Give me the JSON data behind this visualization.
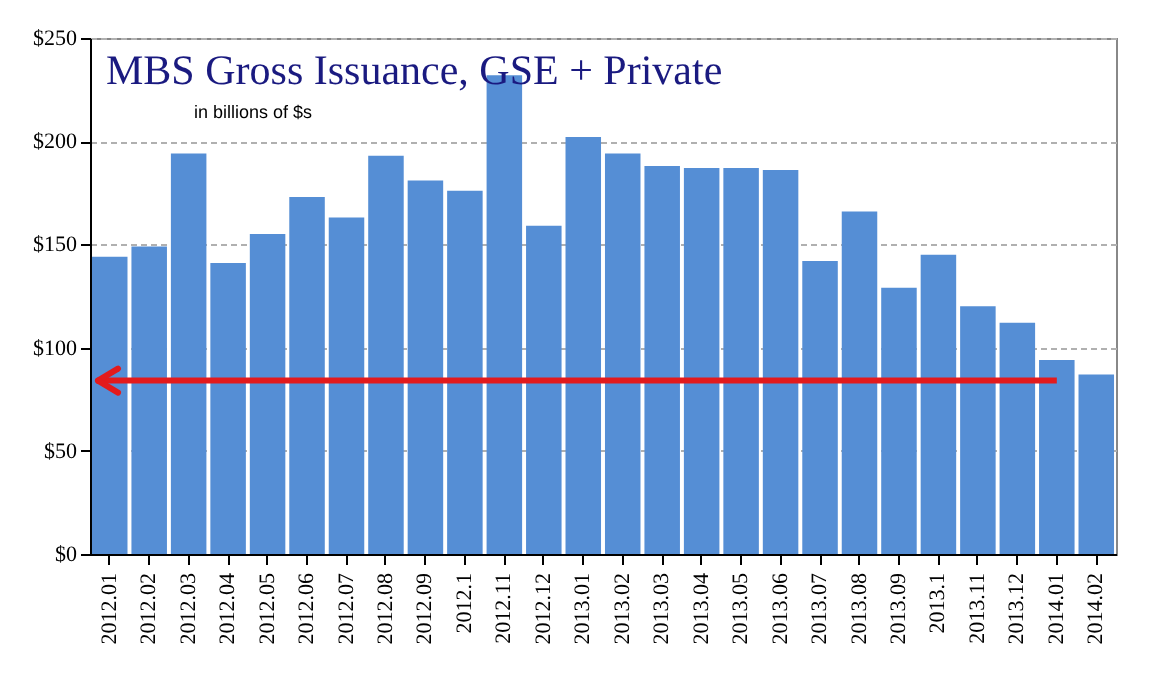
{
  "chart_data": {
    "type": "bar",
    "title": "MBS Gross Issuance, GSE + Private",
    "subtitle": "in billions of $s",
    "categories": [
      "2012.01",
      "2012.02",
      "2012.03",
      "2012.04",
      "2012.05",
      "2012.06",
      "2012.07",
      "2012.08",
      "2012.09",
      "2012.1",
      "2012.11",
      "2012.12",
      "2013.01",
      "2013.02",
      "2013.03",
      "2013.04",
      "2013.05",
      "2013.06",
      "2013.07",
      "2013.08",
      "2013.09",
      "2013.1",
      "2013.11",
      "2013.12",
      "2014.01",
      "2014.02"
    ],
    "values": [
      144,
      149,
      194,
      141,
      155,
      173,
      163,
      193,
      181,
      176,
      232,
      159,
      202,
      194,
      188,
      187,
      187,
      186,
      142,
      166,
      129,
      145,
      120,
      112,
      94,
      87
    ],
    "color": "#558ed5",
    "ylim": [
      0,
      250
    ],
    "yticks": [
      {
        "value": 0,
        "label": "$0"
      },
      {
        "value": 50,
        "label": "$50"
      },
      {
        "value": 100,
        "label": "$100"
      },
      {
        "value": 150,
        "label": "$150"
      },
      {
        "value": 200,
        "label": "$200"
      },
      {
        "value": 250,
        "label": "$250"
      }
    ],
    "grid": "y",
    "ref_lines": [
      {
        "axis": "y",
        "value": 84,
        "color": "#e31a1c"
      }
    ]
  }
}
